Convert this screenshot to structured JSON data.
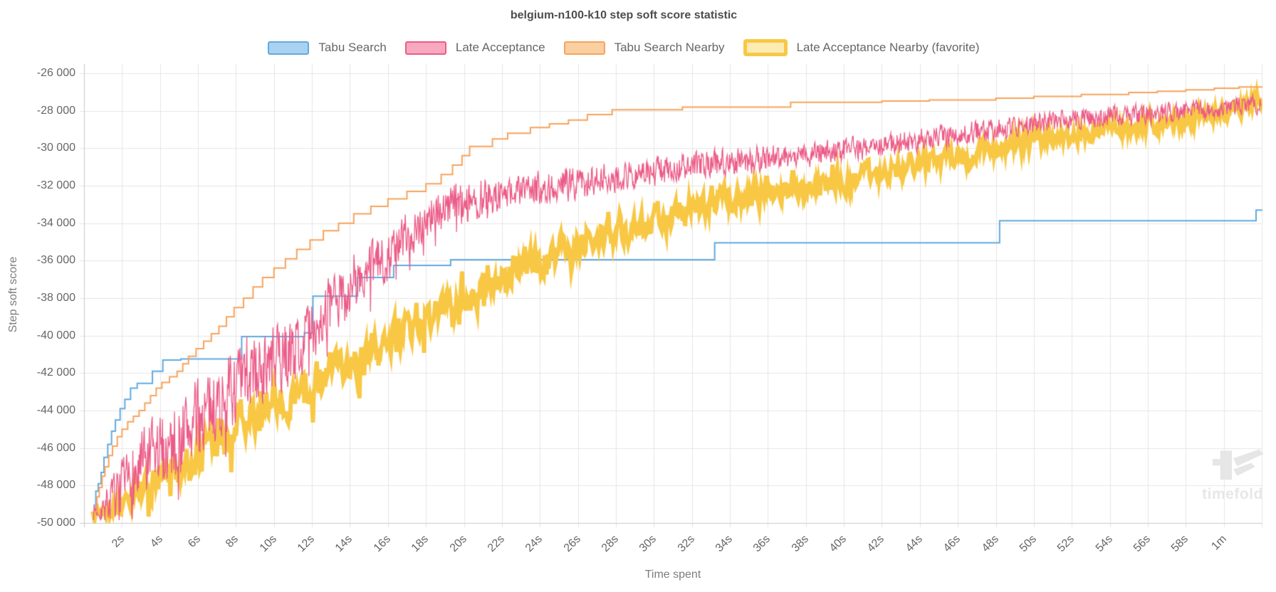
{
  "chart": {
    "title": "belgium-n100-k10 step soft score statistic",
    "x_axis_title": "Time spent",
    "y_axis_title": "Step soft score",
    "watermark_text": "timefold"
  },
  "chart_data": {
    "type": "line",
    "title": "belgium-n100-k10 step soft score statistic",
    "xlabel": "Time spent",
    "ylabel": "Step soft score",
    "x_unit": "seconds",
    "xlim": [
      0,
      62
    ],
    "ylim": [
      -50000,
      -26000
    ],
    "grid": true,
    "legend_position": "top",
    "background": "#ffffff",
    "grid_color": "#e6e6e6",
    "axis_color": "#c9c9c9",
    "x_ticks": {
      "seconds": [
        2,
        4,
        6,
        8,
        10,
        12,
        14,
        16,
        18,
        20,
        22,
        24,
        26,
        28,
        30,
        32,
        34,
        36,
        38,
        40,
        42,
        44,
        46,
        48,
        50,
        52,
        54,
        56,
        58,
        60
      ],
      "labels": [
        "2s",
        "4s",
        "6s",
        "8s",
        "10s",
        "12s",
        "14s",
        "16s",
        "18s",
        "20s",
        "22s",
        "24s",
        "26s",
        "28s",
        "30s",
        "32s",
        "34s",
        "36s",
        "38s",
        "40s",
        "42s",
        "44s",
        "46s",
        "48s",
        "50s",
        "52s",
        "54s",
        "56s",
        "58s",
        "1m"
      ]
    },
    "y_ticks": {
      "values": [
        -26000,
        -28000,
        -30000,
        -32000,
        -34000,
        -36000,
        -38000,
        -40000,
        -42000,
        -44000,
        -46000,
        -48000,
        -50000
      ],
      "labels": [
        "-26 000",
        "-28 000",
        "-30 000",
        "-32 000",
        "-34 000",
        "-36 000",
        "-38 000",
        "-40 000",
        "-42 000",
        "-44 000",
        "-46 000",
        "-48 000",
        "-50 000"
      ]
    },
    "series": [
      {
        "name": "Tabu Search",
        "color": "#61aadf",
        "legend_fill": "#a9d2f2",
        "style": "step",
        "favorite": false,
        "points": [
          [
            0.55,
            -49450
          ],
          [
            0.62,
            -48300
          ],
          [
            0.75,
            -47900
          ],
          [
            0.9,
            -47300
          ],
          [
            1.05,
            -46500
          ],
          [
            1.25,
            -45800
          ],
          [
            1.45,
            -45100
          ],
          [
            1.65,
            -44500
          ],
          [
            1.9,
            -43900
          ],
          [
            2.15,
            -43400
          ],
          [
            2.45,
            -42800
          ],
          [
            2.8,
            -42550
          ],
          [
            3.6,
            -41900
          ],
          [
            4.15,
            -41300
          ],
          [
            5.1,
            -41250
          ],
          [
            8.3,
            -40050
          ],
          [
            11.6,
            -39850
          ],
          [
            12.05,
            -37900
          ],
          [
            14.4,
            -36900
          ],
          [
            16.3,
            -36250
          ],
          [
            19.3,
            -35950
          ],
          [
            33.2,
            -35050
          ],
          [
            48.2,
            -33870
          ],
          [
            61.7,
            -33300
          ]
        ]
      },
      {
        "name": "Late Acceptance",
        "color": "#ec5b87",
        "legend_fill": "#f8a9bf",
        "style": "noisy",
        "favorite": false,
        "points": [
          [
            0.5,
            -49400
          ],
          [
            0.8,
            -49200
          ],
          [
            1.2,
            -49000
          ],
          [
            2,
            -48300
          ],
          [
            3,
            -47300
          ],
          [
            4,
            -46300
          ],
          [
            5,
            -45400
          ],
          [
            6,
            -44500
          ],
          [
            7,
            -43600
          ],
          [
            8,
            -42800
          ],
          [
            9,
            -42000
          ],
          [
            10,
            -41400
          ],
          [
            10.7,
            -41000
          ],
          [
            11.5,
            -40300
          ],
          [
            12.6,
            -38900
          ],
          [
            13.5,
            -38000
          ],
          [
            14.5,
            -37100
          ],
          [
            15.5,
            -36100
          ],
          [
            16.4,
            -35300
          ],
          [
            17.4,
            -34300
          ],
          [
            18.3,
            -33500
          ],
          [
            19.5,
            -33000
          ],
          [
            21,
            -32600
          ],
          [
            23,
            -32300
          ],
          [
            25,
            -32000
          ],
          [
            27,
            -31700
          ],
          [
            29,
            -31400
          ],
          [
            31,
            -31100
          ],
          [
            33,
            -30800
          ],
          [
            35,
            -30600
          ],
          [
            37,
            -30400
          ],
          [
            39,
            -30200
          ],
          [
            41,
            -30000
          ],
          [
            43,
            -29700
          ],
          [
            45,
            -29400
          ],
          [
            47,
            -29100
          ],
          [
            49,
            -28800
          ],
          [
            51,
            -28600
          ],
          [
            53,
            -28400
          ],
          [
            55,
            -28200
          ],
          [
            57,
            -28100
          ],
          [
            59,
            -27950
          ],
          [
            60.5,
            -27800
          ],
          [
            61.5,
            -27600
          ],
          [
            62,
            -27750
          ]
        ],
        "noise_band": [
          [
            0.5,
            500
          ],
          [
            1.5,
            1100
          ],
          [
            3,
            1900
          ],
          [
            6,
            2000
          ],
          [
            9,
            1800
          ],
          [
            12,
            1500
          ],
          [
            15,
            1300
          ],
          [
            18,
            1100
          ],
          [
            21,
            900
          ],
          [
            25,
            800
          ],
          [
            30,
            700
          ],
          [
            35,
            650
          ],
          [
            40,
            600
          ],
          [
            45,
            550
          ],
          [
            50,
            500
          ],
          [
            55,
            480
          ],
          [
            62,
            440
          ]
        ]
      },
      {
        "name": "Tabu Search Nearby",
        "color": "#f7a35c",
        "legend_fill": "#facfa2",
        "style": "step",
        "favorite": false,
        "points": [
          [
            0.55,
            -49400
          ],
          [
            0.68,
            -48600
          ],
          [
            0.8,
            -48100
          ],
          [
            0.95,
            -47500
          ],
          [
            1.1,
            -47000
          ],
          [
            1.3,
            -46400
          ],
          [
            1.5,
            -45900
          ],
          [
            1.75,
            -45400
          ],
          [
            2.0,
            -45000
          ],
          [
            2.3,
            -44600
          ],
          [
            2.6,
            -44300
          ],
          [
            2.9,
            -44000
          ],
          [
            3.2,
            -43600
          ],
          [
            3.5,
            -43200
          ],
          [
            3.8,
            -42800
          ],
          [
            4.1,
            -42500
          ],
          [
            4.5,
            -42200
          ],
          [
            4.9,
            -41900
          ],
          [
            5.2,
            -41500
          ],
          [
            5.5,
            -41100
          ],
          [
            5.9,
            -40700
          ],
          [
            6.3,
            -40300
          ],
          [
            6.7,
            -39900
          ],
          [
            7.1,
            -39500
          ],
          [
            7.5,
            -39000
          ],
          [
            7.9,
            -38500
          ],
          [
            8.4,
            -38000
          ],
          [
            8.9,
            -37400
          ],
          [
            9.4,
            -36900
          ],
          [
            10.0,
            -36400
          ],
          [
            10.6,
            -35900
          ],
          [
            11.2,
            -35400
          ],
          [
            11.9,
            -34900
          ],
          [
            12.6,
            -34400
          ],
          [
            13.4,
            -34000
          ],
          [
            14.2,
            -33500
          ],
          [
            15.1,
            -33100
          ],
          [
            16.0,
            -32700
          ],
          [
            17.0,
            -32300
          ],
          [
            18.0,
            -31900
          ],
          [
            18.8,
            -31400
          ],
          [
            19.4,
            -30900
          ],
          [
            19.9,
            -30400
          ],
          [
            20.3,
            -29900
          ],
          [
            21.5,
            -29500
          ],
          [
            22.3,
            -29200
          ],
          [
            23.5,
            -28900
          ],
          [
            24.5,
            -28700
          ],
          [
            25.5,
            -28500
          ],
          [
            26.5,
            -28200
          ],
          [
            27.8,
            -27950
          ],
          [
            31.5,
            -27800
          ],
          [
            37.2,
            -27550
          ],
          [
            42.0,
            -27480
          ],
          [
            44.5,
            -27420
          ],
          [
            48.0,
            -27330
          ],
          [
            50.0,
            -27230
          ],
          [
            52.5,
            -27130
          ],
          [
            55.0,
            -27030
          ],
          [
            56.5,
            -26960
          ],
          [
            58.0,
            -26880
          ],
          [
            59.5,
            -26800
          ],
          [
            60.8,
            -26730
          ]
        ]
      },
      {
        "name": "Late Acceptance Nearby (favorite)",
        "color": "#f8c845",
        "legend_fill": "#fcecb3",
        "style": "noisy-thick",
        "favorite": true,
        "points": [
          [
            0.45,
            -49400
          ],
          [
            1,
            -49350
          ],
          [
            1.5,
            -49200
          ],
          [
            2,
            -48900
          ],
          [
            2.5,
            -48600
          ],
          [
            3,
            -48300
          ],
          [
            3.5,
            -48000
          ],
          [
            4,
            -47700
          ],
          [
            5,
            -47100
          ],
          [
            6,
            -46400
          ],
          [
            7,
            -45700
          ],
          [
            8,
            -45000
          ],
          [
            9,
            -44300
          ],
          [
            10,
            -43700
          ],
          [
            11,
            -43100
          ],
          [
            12,
            -42500
          ],
          [
            13,
            -42000
          ],
          [
            14,
            -41500
          ],
          [
            15,
            -41000
          ],
          [
            16,
            -40400
          ],
          [
            17,
            -39700
          ],
          [
            18,
            -39000
          ],
          [
            19,
            -38400
          ],
          [
            20,
            -37900
          ],
          [
            21,
            -37400
          ],
          [
            22,
            -36900
          ],
          [
            23,
            -36400
          ],
          [
            24,
            -36000
          ],
          [
            25,
            -35600
          ],
          [
            26,
            -35200
          ],
          [
            27,
            -34800
          ],
          [
            28,
            -34400
          ],
          [
            29,
            -34100
          ],
          [
            30,
            -33800
          ],
          [
            31,
            -33500
          ],
          [
            32,
            -33200
          ],
          [
            33,
            -33000
          ],
          [
            34,
            -32800
          ],
          [
            35,
            -32600
          ],
          [
            36,
            -32400
          ],
          [
            37,
            -32200
          ],
          [
            38,
            -32000
          ],
          [
            39,
            -31800
          ],
          [
            40,
            -31600
          ],
          [
            41,
            -31500
          ],
          [
            42,
            -31300
          ],
          [
            43,
            -31100
          ],
          [
            44,
            -30900
          ],
          [
            45,
            -30700
          ],
          [
            46,
            -30500
          ],
          [
            47,
            -30300
          ],
          [
            48,
            -30100
          ],
          [
            49,
            -29900
          ],
          [
            50,
            -29700
          ],
          [
            51,
            -29500
          ],
          [
            52,
            -29300
          ],
          [
            53,
            -29150
          ],
          [
            54,
            -29000
          ],
          [
            55,
            -28900
          ],
          [
            56,
            -28750
          ],
          [
            57,
            -28600
          ],
          [
            58,
            -28450
          ],
          [
            59,
            -28300
          ],
          [
            60,
            -28100
          ],
          [
            60.8,
            -27900
          ],
          [
            61.5,
            -27550
          ],
          [
            62,
            -27500
          ]
        ],
        "noise_band": [
          [
            0.45,
            250
          ],
          [
            1.5,
            500
          ],
          [
            3,
            900
          ],
          [
            6,
            1200
          ],
          [
            10,
            1300
          ],
          [
            14,
            1250
          ],
          [
            18,
            1150
          ],
          [
            22,
            1050
          ],
          [
            26,
            950
          ],
          [
            30,
            900
          ],
          [
            35,
            850
          ],
          [
            40,
            800
          ],
          [
            45,
            700
          ],
          [
            50,
            620
          ],
          [
            55,
            560
          ],
          [
            60,
            500
          ],
          [
            62,
            430
          ]
        ]
      }
    ]
  }
}
